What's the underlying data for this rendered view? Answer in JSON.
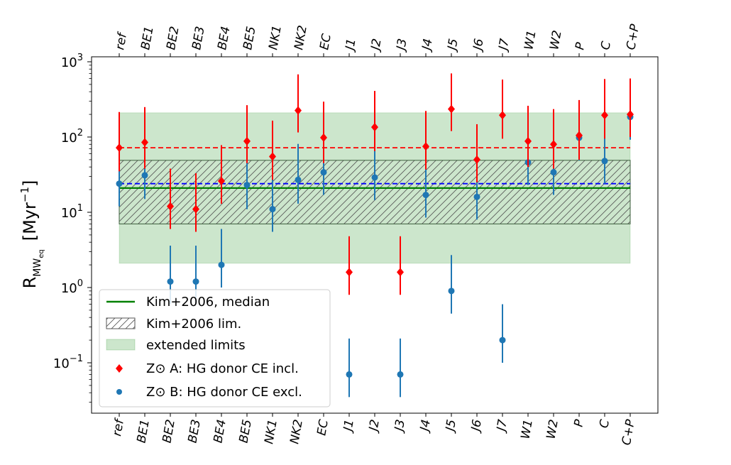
{
  "chart_data": {
    "type": "scatter",
    "title": "",
    "xlabel": "",
    "ylabel": "R_MWeq [Myr^-1]",
    "ylabel_parts": {
      "base": "R",
      "sub": "MW",
      "subsub": "eq",
      "unit_open": "[Myr",
      "unit_exp": "−1",
      "unit_close": "]"
    },
    "yscale": "log",
    "ylim": [
      0.022,
      1000
    ],
    "grid": false,
    "categories": [
      "ref",
      "BE1",
      "BE2",
      "BE3",
      "BE4",
      "BE5",
      "NK1",
      "NK2",
      "EC",
      "J1",
      "J2",
      "J3",
      "J4",
      "J5",
      "J6",
      "J7",
      "W1",
      "W2",
      "P",
      "C",
      "C+P"
    ],
    "yticks": [
      {
        "value": 0.1,
        "base": "10",
        "exp": "−1"
      },
      {
        "value": 1,
        "base": "10",
        "exp": "0"
      },
      {
        "value": 10,
        "base": "10",
        "exp": "1"
      },
      {
        "value": 100,
        "base": "10",
        "exp": "2"
      },
      {
        "value": 1000,
        "base": "10",
        "exp": "3"
      }
    ],
    "reference": {
      "kim2006_median": 21,
      "kim2006_limits": [
        7,
        49
      ],
      "extended_limits": [
        2.1,
        210
      ],
      "medianA": 72,
      "medianB": 24
    },
    "series": [
      {
        "name": "Z⊙ A: HG donor CE incl.",
        "color": "#ff0000",
        "marker": "diamond",
        "values": [
          72,
          85,
          12,
          11,
          26,
          88,
          55,
          225,
          98,
          1.6,
          135,
          1.6,
          75,
          235,
          50,
          195,
          88,
          80,
          105,
          195,
          200
        ],
        "err_low": [
          35,
          38,
          6,
          5.5,
          13,
          45,
          27,
          115,
          45,
          0.8,
          65,
          0.8,
          37,
          120,
          25,
          95,
          40,
          38,
          50,
          95,
          100
        ],
        "err_high": [
          215,
          250,
          38,
          33,
          78,
          265,
          165,
          680,
          295,
          4.8,
          410,
          4.8,
          222,
          700,
          148,
          580,
          260,
          235,
          310,
          590,
          600
        ]
      },
      {
        "name": "Z⊙ B: HG donor CE excl.",
        "color": "#1f77b4",
        "marker": "circle",
        "values": [
          24,
          31,
          1.2,
          1.2,
          2.0,
          23,
          11,
          27,
          34,
          0.07,
          29,
          0.07,
          17,
          0.9,
          16,
          0.2,
          46,
          34,
          98,
          48,
          185
        ],
        "err_low": [
          12,
          15,
          0.6,
          0.6,
          1.0,
          11,
          5.5,
          13,
          17,
          0.035,
          14.5,
          0.035,
          8.5,
          0.45,
          8,
          0.1,
          23,
          17,
          49,
          24,
          92
        ],
        "err_high": [
          72,
          93,
          3.6,
          3.6,
          6.0,
          69,
          33,
          81,
          102,
          0.21,
          87,
          0.21,
          51,
          2.7,
          48,
          0.6,
          138,
          102,
          294,
          144,
          555
        ]
      }
    ],
    "legend": {
      "placement": "lower-left",
      "entries": [
        {
          "label": "Kim+2006, median",
          "kind": "line",
          "color": "#008000"
        },
        {
          "label": "Kim+2006 lim.",
          "kind": "hatch",
          "color": "#555555"
        },
        {
          "label": "extended limits",
          "kind": "patch",
          "color": "#cce6cc"
        },
        {
          "label": "Z⊙ A: HG donor CE incl.",
          "kind": "diamond",
          "color": "#ff0000"
        },
        {
          "label": "Z⊙ B: HG donor CE excl.",
          "kind": "circle",
          "color": "#1f77b4"
        }
      ]
    }
  }
}
